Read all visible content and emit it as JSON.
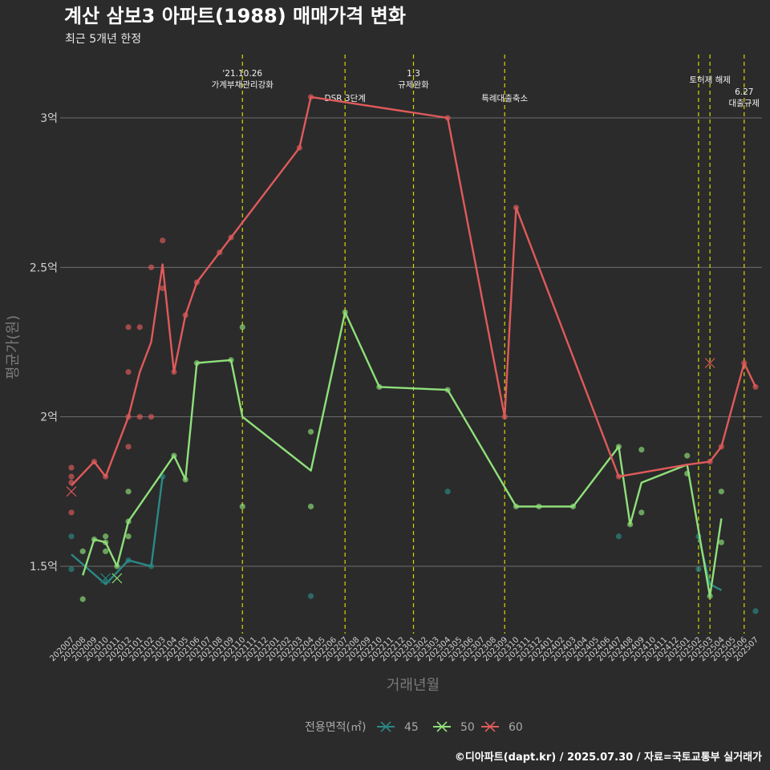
{
  "colors": {
    "background": "#2b2b2b",
    "grid": "#6e6e6e",
    "event_line": "#d6d600",
    "s45": "#2a8a86",
    "s50": "#8fe07a",
    "s60": "#e05a5a"
  },
  "chart_data": {
    "type": "line",
    "title": "계산 삼보3 아파트(1988) 매매가격 변화",
    "subtitle": "최근 5개년 한정",
    "xlabel": "거래년월",
    "ylabel": "평균가(원)",
    "ylim": [
      1.27,
      3.2
    ],
    "yticks": [
      {
        "value": 1.5,
        "label": "1.5억"
      },
      {
        "value": 2.0,
        "label": "2억"
      },
      {
        "value": 2.5,
        "label": "2.5억"
      },
      {
        "value": 3.0,
        "label": "3억"
      }
    ],
    "categories": [
      "202007",
      "202008",
      "202009",
      "202010",
      "202011",
      "202012",
      "202101",
      "202102",
      "202103",
      "202104",
      "202105",
      "202106",
      "202107",
      "202108",
      "202109",
      "202110",
      "202111",
      "202112",
      "202201",
      "202202",
      "202203",
      "202204",
      "202205",
      "202206",
      "202207",
      "202208",
      "202209",
      "202210",
      "202211",
      "202212",
      "202301",
      "202302",
      "202303",
      "202304",
      "202305",
      "202306",
      "202307",
      "202308",
      "202309",
      "202310",
      "202311",
      "202312",
      "202401",
      "202402",
      "202403",
      "202404",
      "202405",
      "202406",
      "202407",
      "202408",
      "202409",
      "202410",
      "202411",
      "202412",
      "202501",
      "202502",
      "202503",
      "202504",
      "202505",
      "202506",
      "202507"
    ],
    "legend_title": "전용면적(㎡)",
    "series": [
      {
        "name": "45",
        "color_key": "s45",
        "line": [
          [
            0,
            1.54
          ],
          [
            3,
            1.44
          ],
          [
            5,
            1.52
          ],
          [
            7,
            1.5
          ],
          [
            8,
            1.8
          ]
        ],
        "line2": [
          [
            55,
            1.6
          ],
          [
            56,
            1.44
          ],
          [
            57,
            1.42
          ]
        ],
        "points": [
          [
            0,
            1.6
          ],
          [
            0,
            1.49
          ],
          [
            3,
            1.45
          ],
          [
            5,
            1.52
          ],
          [
            7,
            1.5
          ],
          [
            8,
            1.8
          ],
          [
            21,
            1.4
          ],
          [
            33,
            1.75
          ],
          [
            48,
            1.6
          ],
          [
            55,
            1.6
          ],
          [
            55,
            1.49
          ],
          [
            60,
            1.35
          ]
        ],
        "x_marks": [
          [
            3,
            1.46
          ]
        ]
      },
      {
        "name": "50",
        "color_key": "s50",
        "line": [
          [
            1,
            1.47
          ],
          [
            2,
            1.59
          ],
          [
            3,
            1.58
          ],
          [
            4,
            1.5
          ],
          [
            5,
            1.65
          ],
          [
            9,
            1.87
          ],
          [
            10,
            1.79
          ],
          [
            11,
            2.18
          ],
          [
            14,
            2.19
          ],
          [
            15,
            2.0
          ],
          [
            21,
            1.82
          ],
          [
            24,
            2.35
          ],
          [
            27,
            2.1
          ],
          [
            33,
            2.09
          ],
          [
            39,
            1.7
          ],
          [
            41,
            1.7
          ],
          [
            44,
            1.7
          ],
          [
            48,
            1.9
          ],
          [
            49,
            1.64
          ],
          [
            50,
            1.78
          ],
          [
            54,
            1.84
          ],
          [
            56,
            1.4
          ],
          [
            57,
            1.66
          ]
        ],
        "points": [
          [
            1,
            1.55
          ],
          [
            1,
            1.39
          ],
          [
            2,
            1.59
          ],
          [
            3,
            1.6
          ],
          [
            3,
            1.58
          ],
          [
            3,
            1.55
          ],
          [
            4,
            1.5
          ],
          [
            5,
            1.75
          ],
          [
            5,
            1.6
          ],
          [
            5,
            1.65
          ],
          [
            9,
            1.87
          ],
          [
            10,
            1.79
          ],
          [
            11,
            2.18
          ],
          [
            14,
            2.19
          ],
          [
            15,
            2.3
          ],
          [
            15,
            1.7
          ],
          [
            21,
            1.95
          ],
          [
            21,
            1.7
          ],
          [
            24,
            2.35
          ],
          [
            27,
            2.1
          ],
          [
            33,
            2.09
          ],
          [
            39,
            1.7
          ],
          [
            41,
            1.7
          ],
          [
            44,
            1.7
          ],
          [
            48,
            1.9
          ],
          [
            49,
            1.64
          ],
          [
            50,
            1.89
          ],
          [
            50,
            1.68
          ],
          [
            54,
            1.87
          ],
          [
            54,
            1.81
          ],
          [
            56,
            1.4
          ],
          [
            57,
            1.75
          ],
          [
            57,
            1.58
          ]
        ],
        "x_marks": [
          [
            4,
            1.46
          ]
        ]
      },
      {
        "name": "60",
        "color_key": "s60",
        "line": [
          [
            0,
            1.77
          ],
          [
            2,
            1.85
          ],
          [
            3,
            1.8
          ],
          [
            5,
            2.0
          ],
          [
            6,
            2.15
          ],
          [
            7,
            2.25
          ],
          [
            8,
            2.51
          ],
          [
            9,
            2.15
          ],
          [
            10,
            2.34
          ],
          [
            11,
            2.45
          ],
          [
            13,
            2.55
          ],
          [
            14,
            2.6
          ],
          [
            20,
            2.9
          ],
          [
            21,
            3.07
          ],
          [
            33,
            3.0
          ],
          [
            38,
            2.0
          ],
          [
            39,
            2.7
          ],
          [
            48,
            1.8
          ],
          [
            54,
            1.84
          ],
          [
            56,
            1.85
          ],
          [
            57,
            1.9
          ],
          [
            59,
            2.18
          ],
          [
            60,
            2.1
          ]
        ],
        "points": [
          [
            0,
            1.83
          ],
          [
            0,
            1.8
          ],
          [
            0,
            1.78
          ],
          [
            0,
            1.68
          ],
          [
            2,
            1.85
          ],
          [
            3,
            1.8
          ],
          [
            5,
            2.3
          ],
          [
            5,
            2.15
          ],
          [
            5,
            2.0
          ],
          [
            5,
            1.9
          ],
          [
            6,
            2.3
          ],
          [
            6,
            2.0
          ],
          [
            7,
            2.5
          ],
          [
            7,
            2.0
          ],
          [
            8,
            2.59
          ],
          [
            8,
            2.43
          ],
          [
            9,
            2.15
          ],
          [
            10,
            2.34
          ],
          [
            11,
            2.45
          ],
          [
            13,
            2.55
          ],
          [
            14,
            2.6
          ],
          [
            20,
            2.9
          ],
          [
            21,
            3.07
          ],
          [
            33,
            3.0
          ],
          [
            38,
            2.0
          ],
          [
            39,
            2.7
          ],
          [
            48,
            1.8
          ],
          [
            56,
            1.85
          ],
          [
            57,
            1.9
          ],
          [
            59,
            2.18
          ],
          [
            60,
            2.1
          ]
        ],
        "x_marks": [
          [
            0,
            1.75
          ],
          [
            56,
            2.18
          ]
        ]
      }
    ],
    "events": [
      {
        "x": 15,
        "lines": [
          "'21.10.26",
          "가계부채관리강화"
        ],
        "pos": "top"
      },
      {
        "x": 24,
        "lines": [
          "DSR 3단계"
        ],
        "pos": "mid"
      },
      {
        "x": 30,
        "lines": [
          "1.3",
          "규제완화"
        ],
        "pos": "top"
      },
      {
        "x": 38,
        "lines": [
          "특례대출축소"
        ],
        "pos": "mid"
      },
      {
        "x": 55,
        "lines": [],
        "pos": "top"
      },
      {
        "x": 56,
        "lines": [
          "토허제 해제"
        ],
        "pos": "top2"
      },
      {
        "x": 59,
        "lines": [
          "6.27",
          "대출규제"
        ],
        "pos": "right"
      }
    ]
  },
  "caption": "©디아파트(dapt.kr) / 2025.07.30 / 자료=국토교통부 실거래가"
}
